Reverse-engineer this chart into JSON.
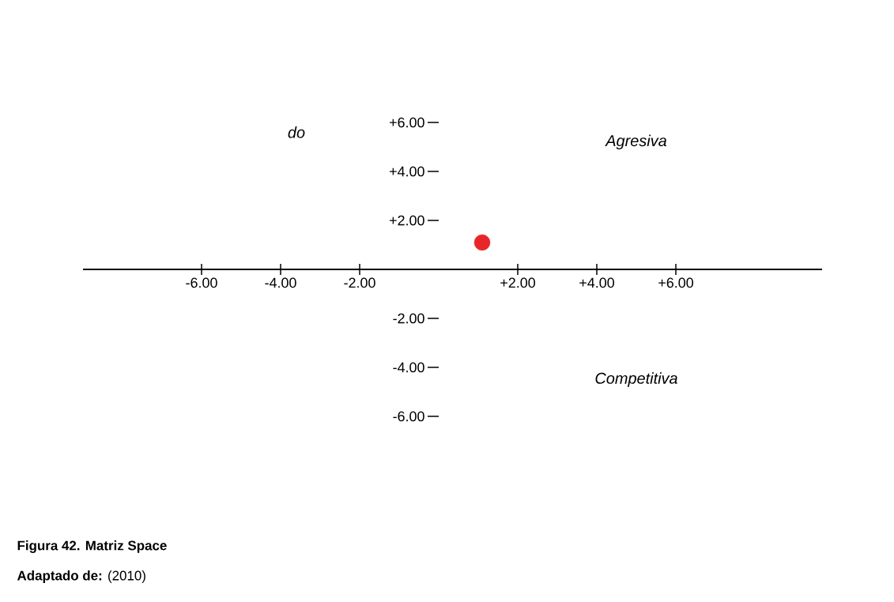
{
  "chart_data": {
    "type": "scatter",
    "title": "Figura 42.  Matriz Space",
    "annotations": [
      "do",
      "Agresiva",
      "Competitiva",
      "**Adaptado de:** (2010)"
    ],
    "x": [
      1.1
    ],
    "values": [
      1.1
    ],
    "color": "#e8262a",
    "xlim": [
      -9,
      9.7
    ],
    "ylim": [
      -6,
      6
    ],
    "xticks": [
      {
        "value": -6,
        "label": "-6.00"
      },
      {
        "value": -4,
        "label": "-4.00"
      },
      {
        "value": -2,
        "label": "-2.00"
      },
      {
        "value": 2,
        "label": "+2.00"
      },
      {
        "value": 4,
        "label": "+4.00"
      },
      {
        "value": 6,
        "label": "+6.00"
      }
    ],
    "yticks": [
      {
        "value": -6,
        "label": "-6.00"
      },
      {
        "value": -4,
        "label": "-4.00"
      },
      {
        "value": -2,
        "label": "-2.00"
      },
      {
        "value": 2,
        "label": "+2.00"
      },
      {
        "value": 4,
        "label": "+4.00"
      },
      {
        "value": 6,
        "label": "+6.00"
      }
    ]
  }
}
